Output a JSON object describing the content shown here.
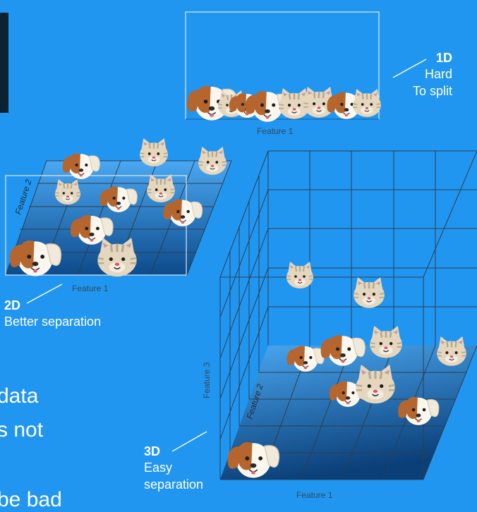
{
  "panel_1d": {
    "axis_x": "Feature 1",
    "label_title": "1D",
    "label_line1": "Hard",
    "label_line2": "To split"
  },
  "panel_2d": {
    "axis_x": "Feature 1",
    "axis_y": "Feature 2",
    "label_title": "2D",
    "label_text": "Better separation"
  },
  "panel_3d": {
    "axis_x": "Feature 1",
    "axis_y": "Feature 2",
    "axis_z": "Feature 3",
    "label_title": "3D",
    "label_line1": "Easy",
    "label_line2": "separation"
  },
  "background_text": {
    "line1": "data",
    "line2": "s not",
    "line3": "be bad"
  },
  "colors": {
    "background": "#2196f0",
    "dog_patch": "#b5652e",
    "dog_face": "#fbf7ee",
    "cat_face": "#e4d7bd",
    "cat_stripe": "#b6a98f"
  },
  "icons": {
    "dog": "dog-face-icon",
    "cat": "cat-face-icon"
  }
}
